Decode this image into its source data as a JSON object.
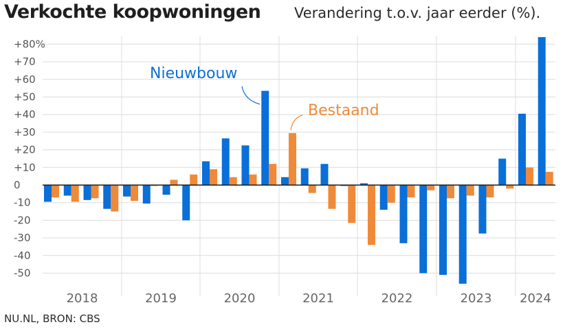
{
  "title": "Verkochte koopwoningen",
  "subtitle": "Verandering t.o.v. jaar eerder (%).",
  "source": "NU.NL, BRON: CBS",
  "colors": {
    "nieuwbouw": "#0a6fd8",
    "bestaand": "#ee8a3a",
    "grid": "#dcdcdc",
    "zero": "#1a1a1a"
  },
  "chart_data": {
    "type": "bar",
    "ylim": [
      -57,
      84
    ],
    "yticks": [
      {
        "value": 80,
        "label": "+80%"
      },
      {
        "value": 70,
        "label": "+70"
      },
      {
        "value": 60,
        "label": "+60"
      },
      {
        "value": 50,
        "label": "+50"
      },
      {
        "value": 40,
        "label": "+40"
      },
      {
        "value": 30,
        "label": "+30"
      },
      {
        "value": 20,
        "label": "+20"
      },
      {
        "value": 10,
        "label": "+10"
      },
      {
        "value": 0,
        "label": "0"
      },
      {
        "value": -10,
        "label": "-10"
      },
      {
        "value": -20,
        "label": "-20"
      },
      {
        "value": -30,
        "label": "-30"
      },
      {
        "value": -40,
        "label": "-40"
      },
      {
        "value": -50,
        "label": "-50"
      }
    ],
    "years": [
      "2018",
      "2019",
      "2020",
      "2021",
      "2022",
      "2023",
      "2024"
    ],
    "categories": [
      "2018 Q1",
      "2018 Q2",
      "2018 Q3",
      "2018 Q4",
      "2019 Q1",
      "2019 Q2",
      "2019 Q3",
      "2019 Q4",
      "2020 Q1",
      "2020 Q2",
      "2020 Q3",
      "2020 Q4",
      "2021 Q1",
      "2021 Q2",
      "2021 Q3",
      "2021 Q4",
      "2022 Q1",
      "2022 Q2",
      "2022 Q3",
      "2022 Q4",
      "2023 Q1",
      "2023 Q2",
      "2023 Q3",
      "2023 Q4",
      "2024 Q1",
      "2024 Q2"
    ],
    "series": [
      {
        "name": "Nieuwbouw",
        "values": [
          -9.5,
          -6,
          -8.5,
          -13.5,
          -6.5,
          -10.5,
          -5.5,
          -20,
          13.5,
          26.5,
          22.5,
          53.5,
          4.5,
          9.5,
          12,
          -0.5,
          1,
          -14,
          -33,
          -50,
          -51,
          -56,
          -27.5,
          15,
          40.5,
          84
        ]
      },
      {
        "name": "Bestaand",
        "values": [
          -7,
          -9.5,
          -7.5,
          -15,
          -9,
          -0.5,
          3,
          6,
          9,
          4.5,
          6,
          12,
          29.5,
          -4.5,
          -13.5,
          -21.5,
          -34,
          -10,
          -7,
          -3,
          -7.5,
          -6,
          -7,
          -2,
          10,
          7.5
        ]
      }
    ]
  }
}
